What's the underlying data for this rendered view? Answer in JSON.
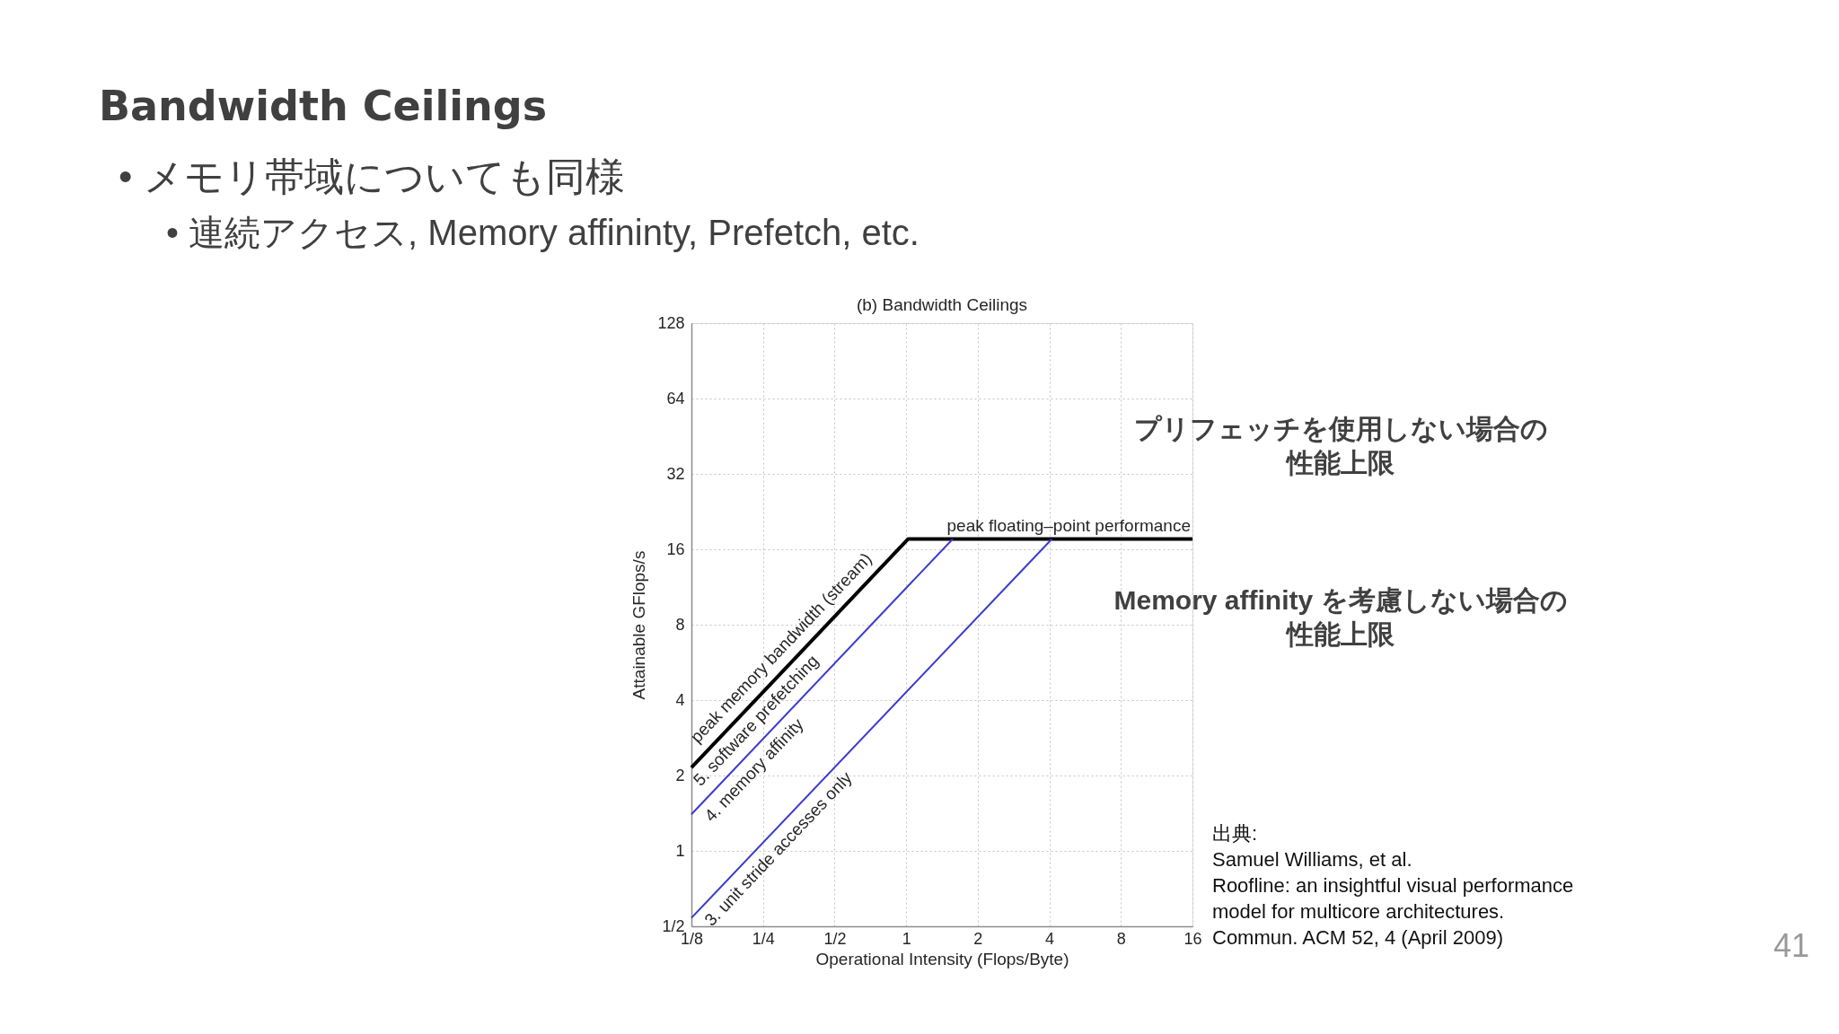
{
  "chart_data": {
    "type": "line",
    "title": "Bandwidth Ceilings",
    "subtitle": "(b) Bandwidth Ceilings",
    "xlabel": "Operational Intensity (Flops/Byte)",
    "ylabel": "Attainable GFlops/s",
    "series": [
      {
        "color": "#000000",
        "x": [
          0.125,
          1.02,
          16
        ],
        "values": [
          2.15,
          17.6,
          17.6
        ]
      },
      {
        "color": "#3b3bce",
        "x": [
          0.125,
          1.57
        ],
        "values": [
          1.4,
          17.6
        ]
      },
      {
        "color": "#3b3bce",
        "x": [
          0.125,
          4.1
        ],
        "values": [
          0.54,
          17.6
        ]
      }
    ],
    "xlim": [
      0.125,
      16
    ],
    "ylim": [
      0.5,
      128
    ],
    "xticks": [
      {
        "value": 0.125,
        "label": "1/8"
      },
      {
        "value": 0.25,
        "label": "1/4"
      },
      {
        "value": 0.5,
        "label": "1/2"
      },
      1,
      2,
      4,
      8,
      16
    ],
    "yticks": [
      {
        "value": 0.5,
        "label": "1/2"
      },
      1,
      2,
      4,
      8,
      16,
      32,
      64,
      128
    ],
    "log": "xy",
    "grid": true,
    "annotations": [
      "• メモリ帯域についても同様",
      "• 連続アクセス, Memory affininty, Prefetch, etc.",
      "peak floating–point performance",
      "peak memory bandwidth (stream)",
      "5. software prefetching",
      "4. memory affinity",
      "3. unit stride accesses only",
      "プリフェッチを使用しない場合の性能上限",
      "Memory affinity を考慮しない場合の性能上限",
      "出典:\nSamuel Williams, et al.\nRoofline: an insightful visual performance\nmodel for multicore architectures.\nCommun. ACM 52, 4 (April 2009)",
      "41"
    ]
  }
}
